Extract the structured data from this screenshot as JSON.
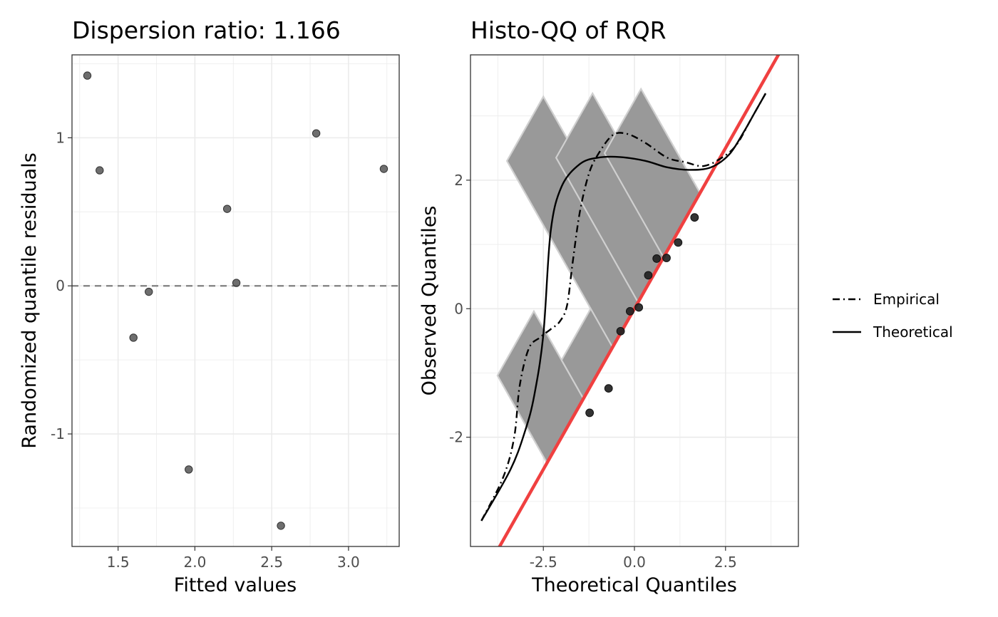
{
  "chart_data": [
    {
      "type": "scatter",
      "title": "Dispersion ratio: 1.166",
      "xlabel": "Fitted values",
      "ylabel": "Randomized quantile residuals",
      "xlim": [
        1.2,
        3.33
      ],
      "ylim": [
        -1.76,
        1.56
      ],
      "x_ticks": [
        1.5,
        2.0,
        2.5,
        3.0
      ],
      "x_tick_labels": [
        "1.5",
        "2.0",
        "2.5",
        "3.0"
      ],
      "y_ticks": [
        -1,
        0,
        1
      ],
      "y_tick_labels": [
        "-1",
        "0",
        "1"
      ],
      "reference_line": {
        "y": 0,
        "style": "dashed"
      },
      "grid": true,
      "point_color": "#555555",
      "points": [
        {
          "x": 1.3,
          "y": 1.42
        },
        {
          "x": 1.38,
          "y": 0.78
        },
        {
          "x": 1.6,
          "y": -0.35
        },
        {
          "x": 1.7,
          "y": -0.04
        },
        {
          "x": 1.96,
          "y": -1.24
        },
        {
          "x": 2.21,
          "y": 0.52
        },
        {
          "x": 2.27,
          "y": 0.02
        },
        {
          "x": 2.56,
          "y": -1.62
        },
        {
          "x": 2.79,
          "y": 1.03
        },
        {
          "x": 3.23,
          "y": 0.79
        }
      ]
    },
    {
      "type": "scatter",
      "title": "Histo-QQ of RQR",
      "xlabel": "Theoretical Quantiles",
      "ylabel": "Observed Quantiles",
      "xlim": [
        -4.5,
        4.5
      ],
      "ylim": [
        -3.7,
        3.95
      ],
      "x_ticks": [
        -2.5,
        0.0,
        2.5
      ],
      "x_tick_labels": [
        "-2.5",
        "0.0",
        "2.5"
      ],
      "y_ticks": [
        -2,
        0,
        2
      ],
      "y_tick_labels": [
        "-2",
        "0",
        "2"
      ],
      "grid": true,
      "identity_line_color": "#f04040",
      "bar_color": "#999999",
      "point_color": "#222222",
      "histogram_bars": [
        {
          "base": -1.9,
          "offset": 1.36
        },
        {
          "base": -0.9,
          "offset": 0.6
        },
        {
          "base": -0.1,
          "offset": 2.9
        },
        {
          "base": 0.6,
          "offset": 2.25
        },
        {
          "base": 1.3,
          "offset": 1.62
        }
      ],
      "bar_half_width": 0.5,
      "points": [
        {
          "x": -1.23,
          "y": -1.62
        },
        {
          "x": -0.71,
          "y": -1.24
        },
        {
          "x": -0.38,
          "y": -0.35
        },
        {
          "x": -0.12,
          "y": -0.04
        },
        {
          "x": 0.12,
          "y": 0.02
        },
        {
          "x": 0.38,
          "y": 0.52
        },
        {
          "x": 0.61,
          "y": 0.78
        },
        {
          "x": 0.88,
          "y": 0.79
        },
        {
          "x": 1.2,
          "y": 1.03
        },
        {
          "x": 1.65,
          "y": 1.42
        }
      ],
      "series": [
        {
          "name": "Empirical",
          "style": "dashdot",
          "points": [
            [
              -4.2,
              -3.3
            ],
            [
              -3.6,
              -2.62
            ],
            [
              -3.3,
              -2.0
            ],
            [
              -3.15,
              -1.2
            ],
            [
              -2.9,
              -0.62
            ],
            [
              -2.6,
              -0.45
            ],
            [
              -2.3,
              -0.32
            ],
            [
              -2.05,
              -0.2
            ],
            [
              -1.85,
              0.05
            ],
            [
              -1.7,
              0.7
            ],
            [
              -1.5,
              1.5
            ],
            [
              -1.25,
              2.1
            ],
            [
              -1.0,
              2.4
            ],
            [
              -0.6,
              2.7
            ],
            [
              -0.2,
              2.72
            ],
            [
              0.3,
              2.58
            ],
            [
              0.9,
              2.35
            ],
            [
              1.4,
              2.28
            ],
            [
              1.9,
              2.22
            ],
            [
              2.4,
              2.35
            ],
            [
              2.8,
              2.55
            ],
            [
              3.2,
              2.95
            ],
            [
              3.6,
              3.35
            ]
          ]
        },
        {
          "name": "Theoretical",
          "style": "solid",
          "points": [
            [
              -4.2,
              -3.3
            ],
            [
              -3.4,
              -2.5
            ],
            [
              -3.0,
              -1.9
            ],
            [
              -2.75,
              -1.35
            ],
            [
              -2.5,
              -0.4
            ],
            [
              -2.3,
              1.2
            ],
            [
              -2.0,
              1.9
            ],
            [
              -1.5,
              2.25
            ],
            [
              -1.0,
              2.35
            ],
            [
              -0.4,
              2.36
            ],
            [
              0.3,
              2.3
            ],
            [
              0.9,
              2.2
            ],
            [
              1.5,
              2.16
            ],
            [
              2.1,
              2.2
            ],
            [
              2.6,
              2.4
            ],
            [
              3.0,
              2.75
            ],
            [
              3.3,
              3.05
            ],
            [
              3.6,
              3.35
            ]
          ]
        }
      ],
      "legend": {
        "position": "right",
        "entries": [
          {
            "label": "Empirical",
            "style": "dashdot"
          },
          {
            "label": "Theoretical",
            "style": "solid"
          }
        ]
      }
    }
  ]
}
